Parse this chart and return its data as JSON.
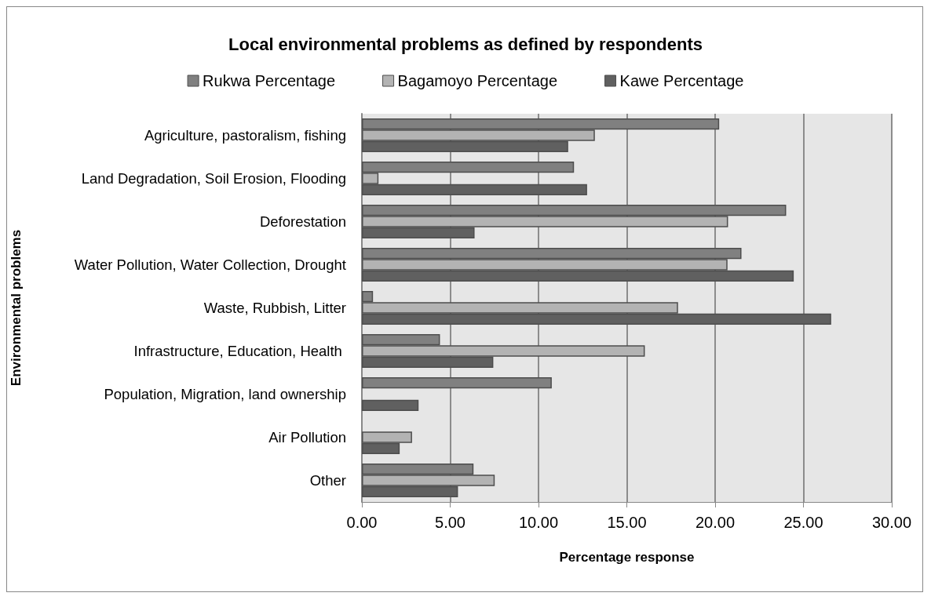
{
  "chart_data": {
    "type": "bar",
    "orientation": "horizontal",
    "title": "Local environmental problems as defined by respondents",
    "xlabel": "Percentage response",
    "ylabel": "Environmental problems",
    "categories": [
      "Agriculture, pastoralism, fishing",
      "Land Degradation, Soil Erosion, Flooding",
      "Deforestation",
      "Water Pollution, Water Collection, Drought",
      "Waste, Rubbish, Litter",
      "Infrastructure, Education, Health ",
      "Population, Migration, land ownership",
      "Air Pollution",
      "Other"
    ],
    "series": [
      {
        "name": "Rukwa Percentage",
        "color": "#808080",
        "values": [
          20.23,
          12.01,
          24.02,
          21.49,
          0.63,
          4.42,
          10.75,
          null,
          6.32
        ]
      },
      {
        "name": "Bagamoyo Percentage",
        "color": "#b3b3b3",
        "values": [
          13.19,
          0.94,
          20.73,
          20.7,
          17.9,
          16.02,
          null,
          2.84,
          7.52
        ]
      },
      {
        "name": "Kawe Percentage",
        "color": "#606060",
        "values": [
          11.68,
          12.75,
          6.38,
          24.45,
          26.57,
          7.44,
          3.21,
          2.14,
          5.44
        ]
      }
    ],
    "xlim": [
      0,
      30
    ],
    "xticks": [
      {
        "value": 0,
        "label": "0.00"
      },
      {
        "value": 5,
        "label": "5.00"
      },
      {
        "value": 10,
        "label": "10.00"
      },
      {
        "value": 15,
        "label": "15.00"
      },
      {
        "value": 20,
        "label": "20.00"
      },
      {
        "value": 25,
        "label": "25.00"
      },
      {
        "value": 30,
        "label": "30.00"
      }
    ],
    "grid": "x",
    "legend": "top"
  }
}
